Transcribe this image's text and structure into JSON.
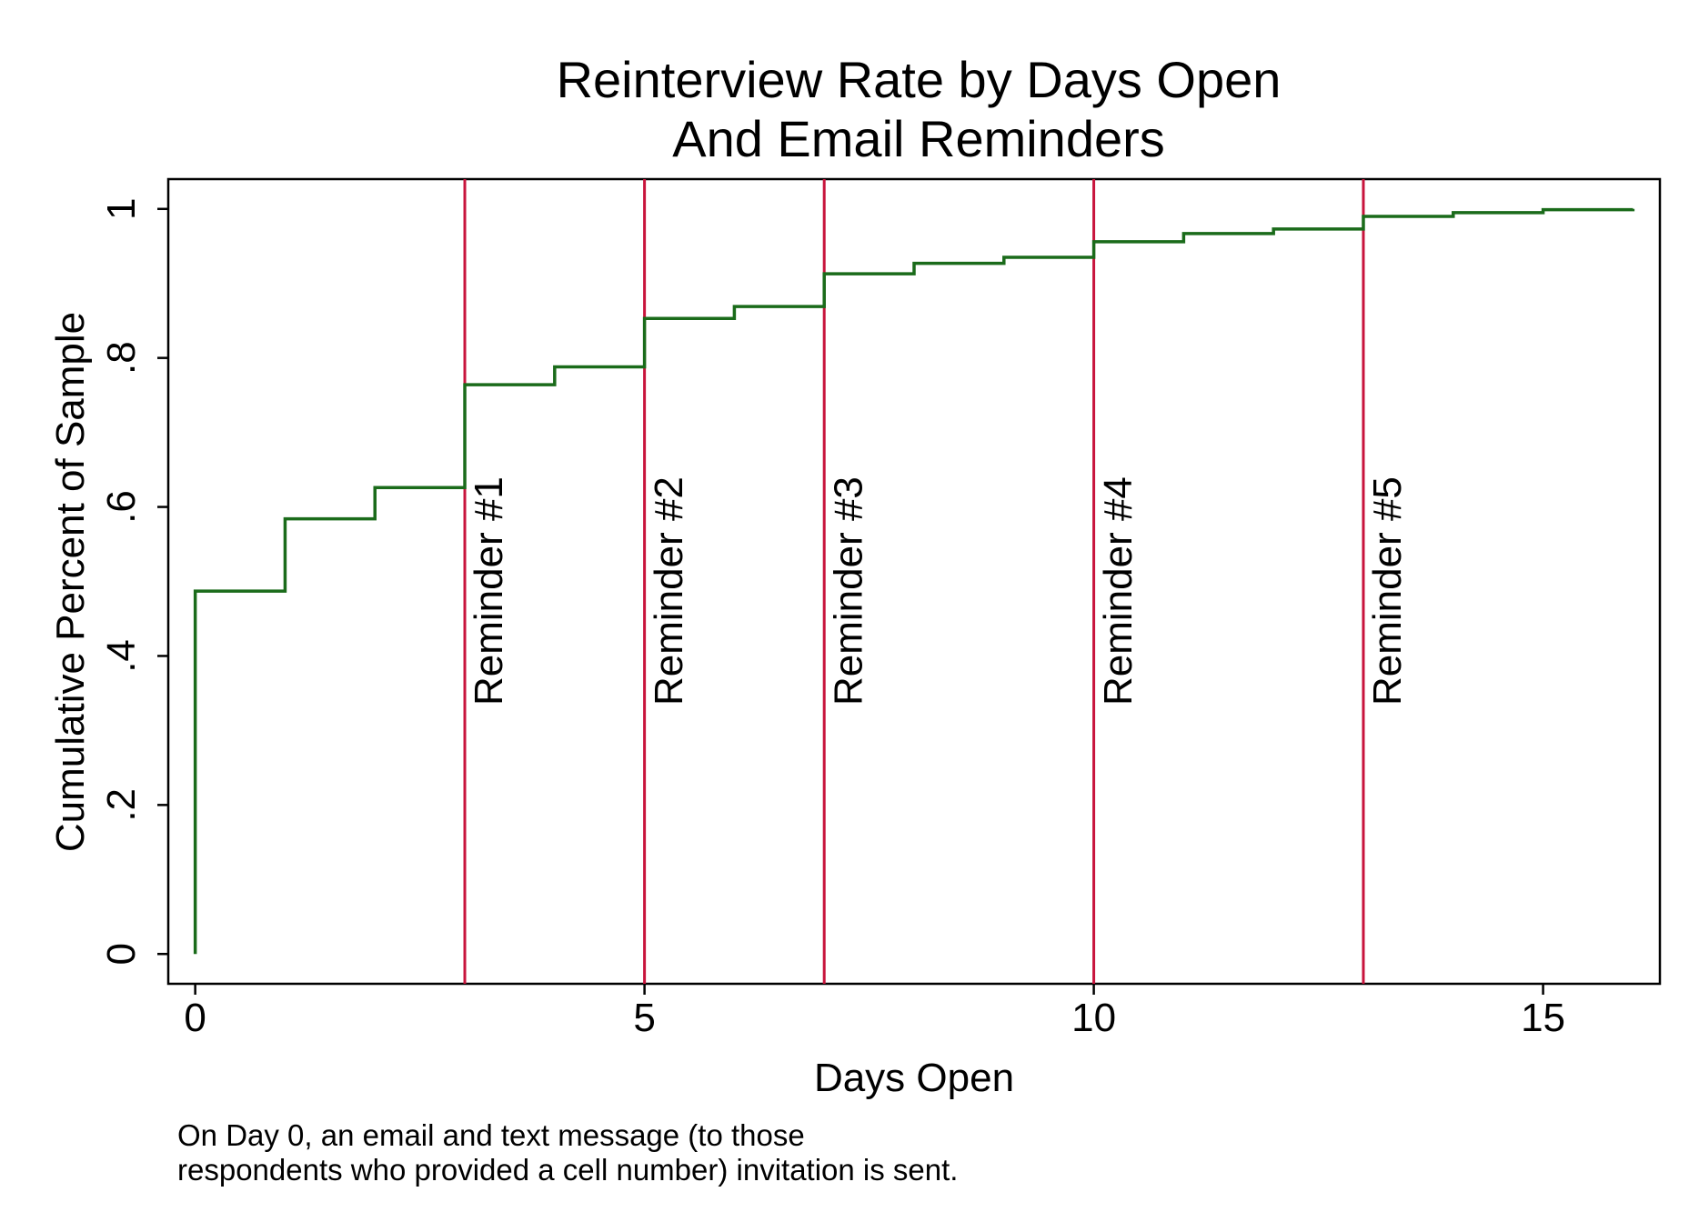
{
  "chart_data": {
    "type": "line",
    "step": true,
    "title_lines": [
      "Reinterview Rate by Days Open",
      "And Email Reminders"
    ],
    "xlabel": "Days Open",
    "ylabel": "Cumulative Percent of Sample",
    "xlim": [
      -0.3,
      16.3
    ],
    "ylim": [
      -0.04,
      1.04
    ],
    "x_ticks": [
      0,
      5,
      10,
      15
    ],
    "x_tick_labels": [
      "0",
      "5",
      "10",
      "15"
    ],
    "y_ticks": [
      0,
      0.2,
      0.4,
      0.6,
      0.8,
      1
    ],
    "y_tick_labels": [
      "0",
      ".2",
      ".4",
      ".6",
      ".8",
      "1"
    ],
    "grid": false,
    "legend": "none",
    "colors": {
      "line": "#1a6b1a",
      "reminder": "#c8143c",
      "axis": "#000000"
    },
    "series": [
      {
        "x": [
          0,
          0,
          1,
          2,
          3,
          4,
          5,
          6,
          7,
          8,
          9,
          10,
          11,
          12,
          13,
          14,
          15,
          16
        ],
        "values": [
          0.0,
          0.487,
          0.584,
          0.626,
          0.764,
          0.788,
          0.853,
          0.869,
          0.913,
          0.927,
          0.935,
          0.956,
          0.967,
          0.973,
          0.99,
          0.995,
          0.999,
          1.0
        ]
      }
    ],
    "reminders": [
      {
        "x": 3,
        "label": "Reminder #1"
      },
      {
        "x": 5,
        "label": "Reminder #2"
      },
      {
        "x": 7,
        "label": "Reminder #3"
      },
      {
        "x": 10,
        "label": "Reminder #4"
      },
      {
        "x": 13,
        "label": "Reminder #5"
      }
    ],
    "note_lines": [
      "On Day 0, an email and text message (to those",
      "respondents who provided a cell number) invitation is sent."
    ]
  }
}
